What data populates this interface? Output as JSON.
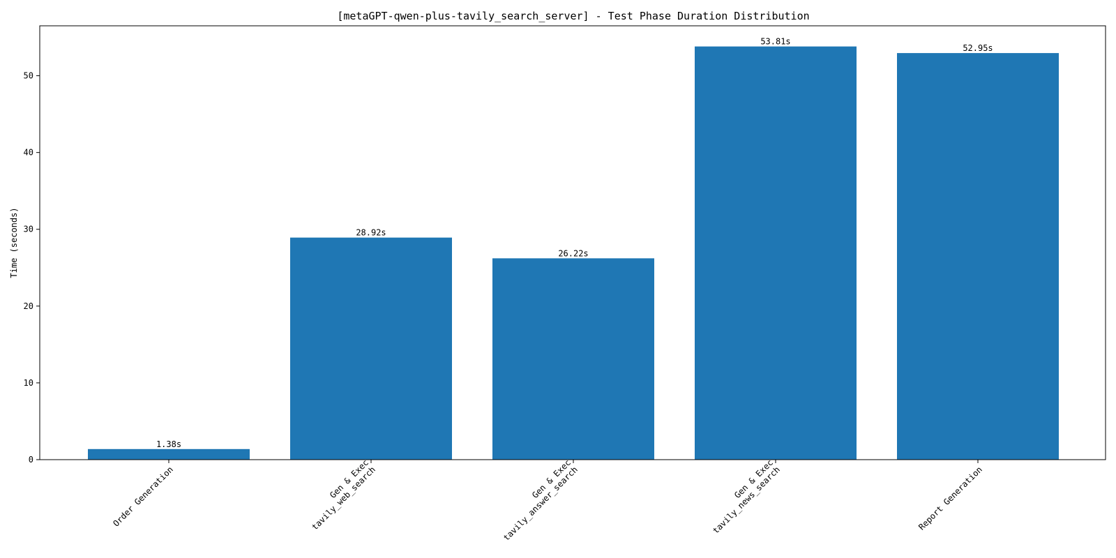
{
  "chart_data": {
    "type": "bar",
    "title": "[metaGPT-qwen-plus-tavily_search_server] - Test Phase Duration Distribution",
    "xlabel": "",
    "ylabel": "Time (seconds)",
    "ylim": [
      0,
      56.5
    ],
    "yticks": [
      0,
      10,
      20,
      30,
      40,
      50
    ],
    "categories": [
      [
        "Order Generation"
      ],
      [
        "Gen & Exec",
        "tavily_web_search"
      ],
      [
        "Gen & Exec",
        "tavily_answer_search"
      ],
      [
        "Gen & Exec",
        "tavily_news_search"
      ],
      [
        "Report Generation"
      ]
    ],
    "values": [
      1.38,
      28.92,
      26.22,
      53.81,
      52.95
    ],
    "value_labels": [
      "1.38s",
      "28.92s",
      "26.22s",
      "53.81s",
      "52.95s"
    ],
    "bar_color": "#1f77b4",
    "grid": false
  }
}
